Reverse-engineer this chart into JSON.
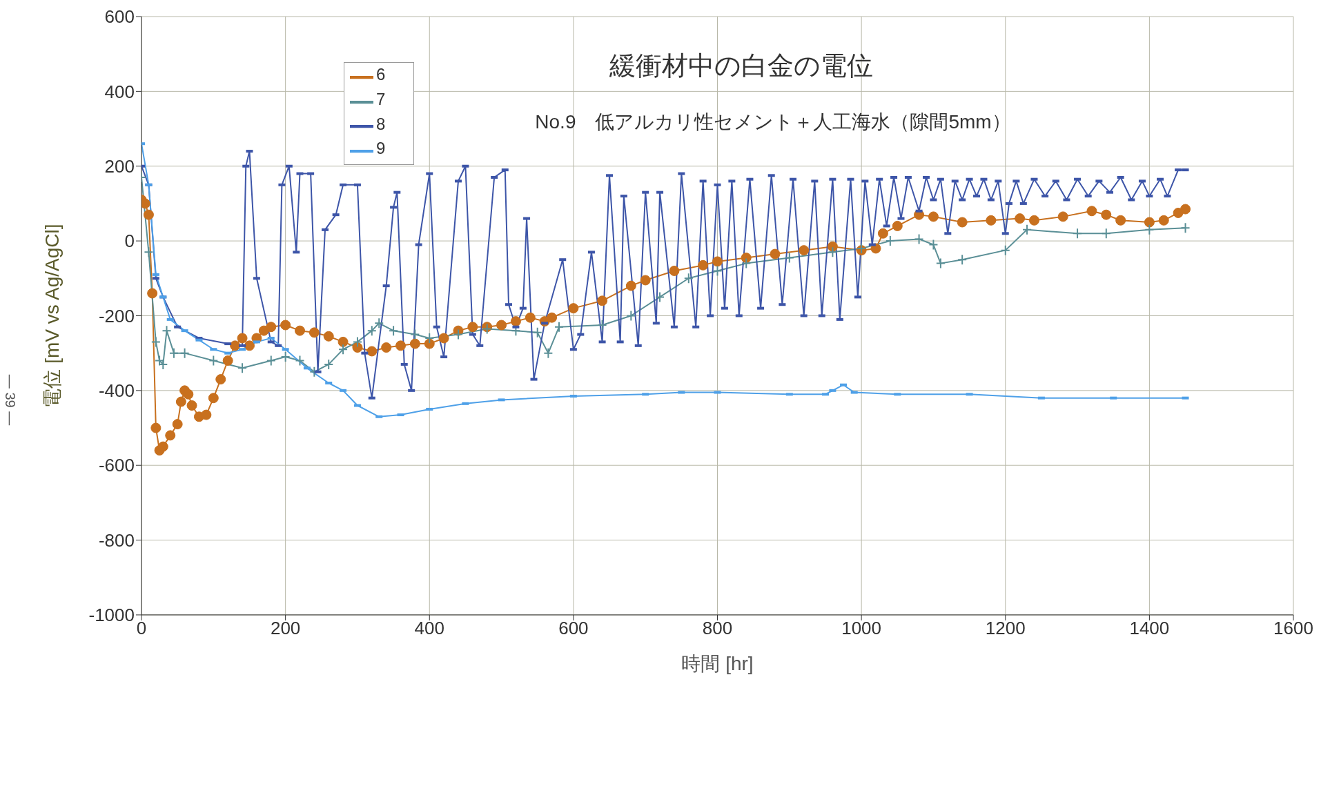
{
  "chart_data": {
    "type": "line",
    "title": "緩衝材中の白金の電位",
    "subtitle": "No.9　低アルカリ性セメント＋人工海水（隙間5mm）",
    "xlabel": "時間 [hr]",
    "ylabel": "電位 [mV vs Ag/AgCl]",
    "annotations": [
      "— 39 —"
    ],
    "xlim": [
      0,
      1600
    ],
    "xticks": [
      0,
      200,
      400,
      600,
      800,
      1000,
      1200,
      1400,
      1600
    ],
    "ylim": [
      -1000,
      600
    ],
    "yticks": [
      -1000,
      -800,
      -600,
      -400,
      -200,
      0,
      200,
      400,
      600
    ],
    "grid": true,
    "legend": "top left",
    "line_style": "solid",
    "series": [
      {
        "name": "6",
        "color": "#c8701e",
        "marker": "circle",
        "x": [
          0,
          5,
          10,
          15,
          20,
          25,
          30,
          40,
          50,
          55,
          60,
          65,
          70,
          80,
          90,
          100,
          110,
          120,
          130,
          140,
          150,
          160,
          170,
          180,
          200,
          220,
          240,
          260,
          280,
          300,
          320,
          340,
          360,
          380,
          400,
          420,
          440,
          460,
          480,
          500,
          520,
          540,
          560,
          570,
          600,
          640,
          680,
          700,
          740,
          780,
          800,
          840,
          880,
          920,
          960,
          1000,
          1020,
          1030,
          1050,
          1080,
          1100,
          1140,
          1180,
          1220,
          1240,
          1280,
          1320,
          1340,
          1360,
          1400,
          1420,
          1440,
          1450
        ],
        "values": [
          110,
          100,
          70,
          -140,
          -500,
          -560,
          -550,
          -520,
          -490,
          -430,
          -400,
          -410,
          -440,
          -470,
          -465,
          -420,
          -370,
          -320,
          -280,
          -260,
          -280,
          -260,
          -240,
          -230,
          -225,
          -240,
          -245,
          -255,
          -270,
          -285,
          -295,
          -285,
          -280,
          -275,
          -275,
          -260,
          -240,
          -230,
          -230,
          -225,
          -215,
          -205,
          -215,
          -205,
          -180,
          -160,
          -120,
          -105,
          -80,
          -65,
          -55,
          -45,
          -35,
          -25,
          -15,
          -25,
          -20,
          20,
          40,
          70,
          65,
          50,
          55,
          60,
          55,
          65,
          80,
          70,
          55,
          50,
          55,
          75,
          85
        ]
      },
      {
        "name": "7",
        "color": "#5a8f96",
        "marker": "cross",
        "x": [
          0,
          10,
          20,
          25,
          30,
          35,
          45,
          60,
          100,
          140,
          180,
          200,
          220,
          240,
          260,
          280,
          300,
          320,
          330,
          350,
          380,
          400,
          440,
          480,
          520,
          550,
          565,
          580,
          640,
          680,
          720,
          760,
          800,
          840,
          900,
          960,
          1000,
          1040,
          1080,
          1100,
          1110,
          1140,
          1200,
          1230,
          1300,
          1340,
          1400,
          1450
        ],
        "values": [
          170,
          -30,
          -270,
          -320,
          -330,
          -240,
          -300,
          -300,
          -320,
          -340,
          -320,
          -310,
          -320,
          -350,
          -330,
          -290,
          -270,
          -240,
          -220,
          -240,
          -250,
          -260,
          -250,
          -235,
          -240,
          -245,
          -300,
          -230,
          -225,
          -200,
          -150,
          -100,
          -80,
          -60,
          -45,
          -30,
          -20,
          0,
          5,
          -10,
          -60,
          -50,
          -25,
          30,
          20,
          20,
          30,
          35
        ]
      },
      {
        "name": "8",
        "color": "#3d55a8",
        "marker": "square",
        "x": [
          0,
          10,
          20,
          30,
          50,
          80,
          120,
          140,
          145,
          150,
          160,
          180,
          190,
          195,
          205,
          215,
          220,
          235,
          245,
          255,
          270,
          280,
          300,
          310,
          320,
          340,
          350,
          355,
          365,
          375,
          385,
          400,
          410,
          420,
          440,
          450,
          460,
          470,
          490,
          505,
          510,
          520,
          530,
          535,
          545,
          560,
          585,
          600,
          610,
          625,
          640,
          650,
          665,
          670,
          690,
          700,
          715,
          720,
          740,
          750,
          770,
          780,
          790,
          800,
          810,
          820,
          830,
          845,
          860,
          875,
          890,
          905,
          920,
          935,
          945,
          960,
          970,
          985,
          995,
          1005,
          1015,
          1025,
          1035,
          1045,
          1055,
          1065,
          1080,
          1090,
          1100,
          1110,
          1120,
          1130,
          1140,
          1150,
          1160,
          1170,
          1180,
          1190,
          1200,
          1205,
          1215,
          1225,
          1240,
          1255,
          1270,
          1285,
          1300,
          1315,
          1330,
          1345,
          1360,
          1375,
          1390,
          1400,
          1415,
          1425,
          1440,
          1450
        ],
        "values": [
          200,
          150,
          -100,
          -150,
          -230,
          -260,
          -275,
          -280,
          200,
          240,
          -100,
          -270,
          -280,
          150,
          200,
          -30,
          180,
          180,
          -350,
          30,
          70,
          150,
          150,
          -300,
          -420,
          -120,
          90,
          130,
          -330,
          -400,
          -10,
          180,
          -230,
          -310,
          160,
          200,
          -250,
          -280,
          170,
          190,
          -170,
          -230,
          -180,
          60,
          -370,
          -220,
          -50,
          -290,
          -250,
          -30,
          -270,
          175,
          -270,
          120,
          -280,
          130,
          -220,
          130,
          -230,
          180,
          -230,
          160,
          -200,
          150,
          -180,
          160,
          -200,
          165,
          -180,
          175,
          -170,
          165,
          -200,
          160,
          -200,
          165,
          -210,
          165,
          -150,
          160,
          -10,
          165,
          40,
          170,
          60,
          170,
          80,
          170,
          110,
          165,
          20,
          160,
          110,
          165,
          120,
          165,
          110,
          160,
          20,
          100,
          160,
          100,
          165,
          120,
          160,
          110,
          165,
          120,
          160,
          130,
          170,
          110,
          160,
          120,
          165,
          120,
          190,
          190
        ]
      },
      {
        "name": "9",
        "color": "#4ea0e8",
        "marker": "square",
        "x": [
          0,
          10,
          20,
          30,
          40,
          60,
          80,
          100,
          120,
          140,
          160,
          180,
          200,
          230,
          260,
          280,
          300,
          330,
          360,
          400,
          450,
          500,
          600,
          700,
          750,
          800,
          900,
          950,
          960,
          975,
          990,
          1050,
          1150,
          1250,
          1350,
          1450
        ],
        "values": [
          260,
          150,
          -90,
          -150,
          -210,
          -240,
          -265,
          -290,
          -300,
          -290,
          -270,
          -260,
          -290,
          -340,
          -380,
          -400,
          -440,
          -470,
          -465,
          -450,
          -435,
          -425,
          -415,
          -410,
          -405,
          -405,
          -410,
          -410,
          -400,
          -385,
          -405,
          -410,
          -410,
          -420,
          -420,
          -420
        ]
      }
    ]
  }
}
